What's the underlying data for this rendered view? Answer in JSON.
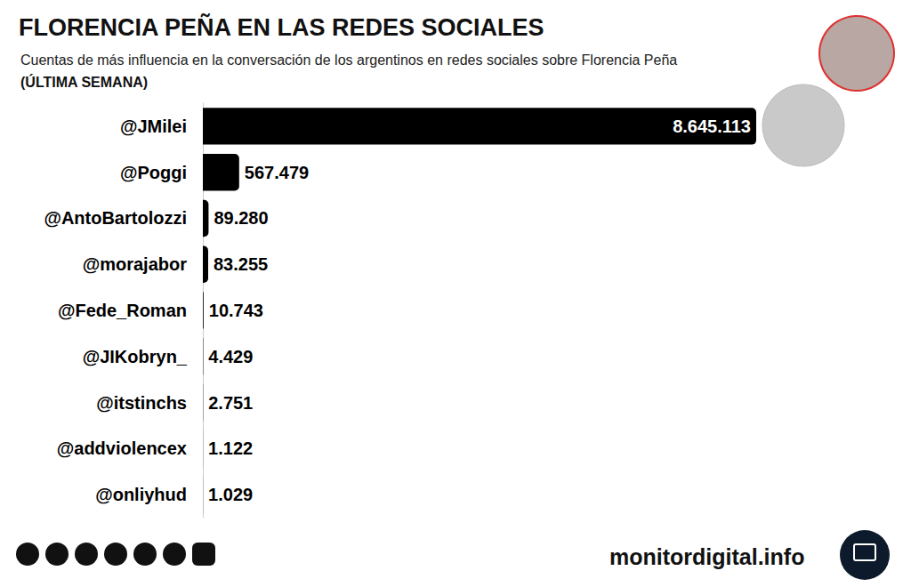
{
  "chart_data": {
    "type": "bar",
    "orientation": "horizontal",
    "title": "FLORENCIA PEÑA EN LAS REDES SOCIALES",
    "subtitle": "Cuentas de más influencia en la conversación de los argentinos en redes sociales sobre Florencia Peña",
    "period": "(ÚLTIMA SEMANA)",
    "footer": "monitordigital.info",
    "categories": [
      "@JMilei",
      "@Poggi",
      "@AntoBartolozzi",
      "@morajabor",
      "@Fede_Roman",
      "@JIKobryn_",
      "@itstinchs",
      "@addviolencex",
      "@onliyhud"
    ],
    "values": [
      8645113,
      567479,
      89280,
      83255,
      10743,
      4429,
      2751,
      1122,
      1029
    ],
    "value_labels": [
      "8.645.113",
      "567.479",
      "89.280",
      "83.255",
      "10.743",
      "4.429",
      "2.751",
      "1.122",
      "1.029"
    ],
    "color": "#000000",
    "xlim": [
      0,
      8645113
    ],
    "xticks": [],
    "grid": false,
    "data_labels": true,
    "tick_labels": "y"
  }
}
